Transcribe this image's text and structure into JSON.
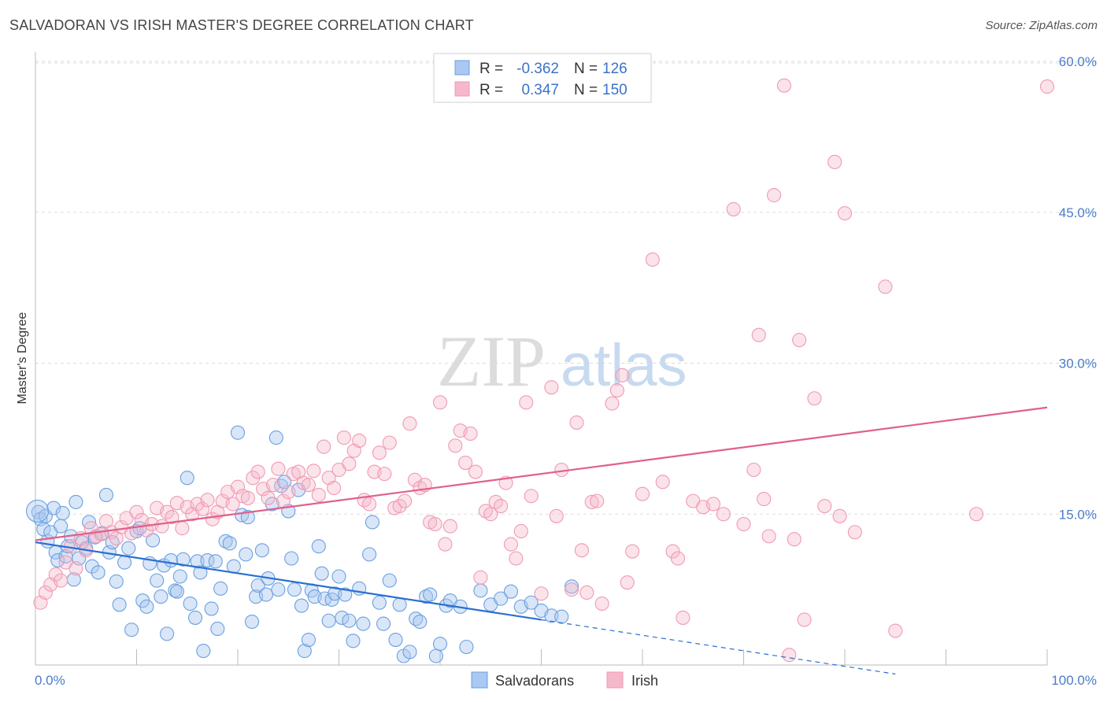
{
  "title": "SALVADORAN VS IRISH MASTER'S DEGREE CORRELATION CHART",
  "source": "Source: ZipAtlas.com",
  "watermark": {
    "zip": "ZIP",
    "atlas": "atlas"
  },
  "legend_top": [
    {
      "r_label": "R =",
      "r_value": "-0.362",
      "n_label": "N =",
      "n_value": "126",
      "color": "#aac8f0"
    },
    {
      "r_label": "R =",
      "r_value": "0.347",
      "n_label": "N =",
      "n_value": "150",
      "color": "#f5b8ca"
    }
  ],
  "legend_bottom": [
    {
      "label": "Salvadorans",
      "color": "#aac8f0"
    },
    {
      "label": "Irish",
      "color": "#f5b8ca"
    }
  ],
  "colors": {
    "blue": "#6aa0e0",
    "blue_line": "#2a6fd0",
    "pink": "#f09ab4",
    "pink_line": "#e0608a",
    "grid": "#dddddd",
    "tick_text": "#4a7cc9"
  },
  "chart_data": {
    "type": "scatter",
    "xlabel": "",
    "ylabel": "Master's Degree",
    "xlim": [
      0,
      100
    ],
    "ylim": [
      0,
      60
    ],
    "x_tick_labels": [
      "0.0%",
      "100.0%"
    ],
    "y_ticks": [
      15,
      30,
      45,
      60
    ],
    "y_tick_labels": [
      "15.0%",
      "30.0%",
      "45.0%",
      "60.0%"
    ],
    "grid": true,
    "series": [
      {
        "name": "Salvadorans",
        "trend": {
          "x": [
            0,
            50
          ],
          "y": [
            12.2,
            4.5
          ],
          "dashed_to": {
            "x": 85,
            "y": -0.9
          }
        },
        "points": [
          [
            0.3,
            15.2
          ],
          [
            0.5,
            14.5
          ],
          [
            0.8,
            13.5
          ],
          [
            1,
            14.8
          ],
          [
            1.2,
            12.3
          ],
          [
            1.5,
            13.2
          ],
          [
            1.8,
            15.6
          ],
          [
            2,
            11.2
          ],
          [
            2.2,
            10.4
          ],
          [
            2.5,
            13.8
          ],
          [
            2.7,
            15.1
          ],
          [
            3,
            10.8
          ],
          [
            3.2,
            11.8
          ],
          [
            3.5,
            12.8
          ],
          [
            3.8,
            8.5
          ],
          [
            4,
            16.2
          ],
          [
            4.3,
            10.6
          ],
          [
            4.6,
            12.2
          ],
          [
            5,
            11.6
          ],
          [
            5.3,
            14.2
          ],
          [
            5.6,
            9.8
          ],
          [
            5.9,
            12.7
          ],
          [
            6.2,
            9.2
          ],
          [
            6.6,
            13.1
          ],
          [
            7,
            16.9
          ],
          [
            7.3,
            11.2
          ],
          [
            7.6,
            12.2
          ],
          [
            8,
            8.3
          ],
          [
            8.3,
            6.0
          ],
          [
            8.8,
            10.2
          ],
          [
            9.2,
            11.6
          ],
          [
            9.5,
            3.5
          ],
          [
            10,
            13.3
          ],
          [
            10.3,
            13.6
          ],
          [
            10.6,
            6.4
          ],
          [
            11,
            5.8
          ],
          [
            11.3,
            10.1
          ],
          [
            11.6,
            12.4
          ],
          [
            12,
            8.4
          ],
          [
            12.4,
            6.8
          ],
          [
            12.7,
            9.9
          ],
          [
            13,
            3.1
          ],
          [
            13.4,
            10.4
          ],
          [
            13.8,
            7.4
          ],
          [
            14,
            7.3
          ],
          [
            14.3,
            8.8
          ],
          [
            14.6,
            10.5
          ],
          [
            15,
            18.6
          ],
          [
            15.3,
            6.1
          ],
          [
            15.8,
            4.7
          ],
          [
            16,
            10.3
          ],
          [
            16.3,
            9.2
          ],
          [
            16.6,
            1.4
          ],
          [
            17,
            10.4
          ],
          [
            17.4,
            5.6
          ],
          [
            17.8,
            10.3
          ],
          [
            18,
            3.6
          ],
          [
            18.3,
            7.6
          ],
          [
            18.8,
            12.3
          ],
          [
            19.2,
            12.1
          ],
          [
            19.6,
            9.8
          ],
          [
            20,
            23.1
          ],
          [
            20.4,
            14.9
          ],
          [
            20.8,
            11.0
          ],
          [
            21,
            14.7
          ],
          [
            21.4,
            4.3
          ],
          [
            21.8,
            6.8
          ],
          [
            22,
            7.9
          ],
          [
            22.4,
            11.4
          ],
          [
            22.8,
            7.0
          ],
          [
            23,
            8.6
          ],
          [
            23.4,
            16.0
          ],
          [
            23.8,
            22.6
          ],
          [
            24,
            7.5
          ],
          [
            24.3,
            17.8
          ],
          [
            24.6,
            18.2
          ],
          [
            25,
            15.3
          ],
          [
            25.3,
            10.6
          ],
          [
            25.6,
            7.5
          ],
          [
            26,
            17.4
          ],
          [
            26.3,
            5.9
          ],
          [
            26.6,
            1.4
          ],
          [
            27,
            2.5
          ],
          [
            27.3,
            7.4
          ],
          [
            27.6,
            6.8
          ],
          [
            28,
            11.8
          ],
          [
            28.3,
            9.1
          ],
          [
            28.6,
            6.6
          ],
          [
            29,
            4.4
          ],
          [
            29.3,
            6.5
          ],
          [
            29.6,
            7.1
          ],
          [
            30,
            8.8
          ],
          [
            30.3,
            4.7
          ],
          [
            30.6,
            7.0
          ],
          [
            31,
            4.4
          ],
          [
            31.4,
            2.4
          ],
          [
            32,
            7.6
          ],
          [
            32.4,
            4.1
          ],
          [
            33,
            11.0
          ],
          [
            33.3,
            14.2
          ],
          [
            34,
            6.2
          ],
          [
            34.4,
            4.1
          ],
          [
            35,
            8.4
          ],
          [
            35.6,
            2.5
          ],
          [
            36,
            6.0
          ],
          [
            36.4,
            0.9
          ],
          [
            37,
            1.3
          ],
          [
            37.6,
            4.6
          ],
          [
            38,
            4.3
          ],
          [
            38.6,
            6.8
          ],
          [
            39,
            7.0
          ],
          [
            39.6,
            0.9
          ],
          [
            40,
            2.1
          ],
          [
            40.6,
            5.9
          ],
          [
            41,
            6.4
          ],
          [
            42,
            5.8
          ],
          [
            42.6,
            1.8
          ],
          [
            44,
            7.4
          ],
          [
            45,
            6.0
          ],
          [
            46,
            6.6
          ],
          [
            47,
            7.3
          ],
          [
            48,
            5.8
          ],
          [
            49,
            6.2
          ],
          [
            50,
            5.4
          ],
          [
            51,
            4.9
          ],
          [
            52,
            4.8
          ],
          [
            53,
            7.8
          ]
        ]
      },
      {
        "name": "Irish",
        "trend": {
          "x": [
            0,
            100
          ],
          "y": [
            12.4,
            25.6
          ]
        },
        "points": [
          [
            0.5,
            6.2
          ],
          [
            1,
            7.2
          ],
          [
            1.5,
            8.0
          ],
          [
            2,
            9.0
          ],
          [
            2.5,
            8.4
          ],
          [
            3,
            10.2
          ],
          [
            3.5,
            11.8
          ],
          [
            4,
            9.6
          ],
          [
            4.5,
            12.6
          ],
          [
            5,
            11.4
          ],
          [
            5.5,
            13.6
          ],
          [
            6,
            12.8
          ],
          [
            6.5,
            13.0
          ],
          [
            7,
            14.3
          ],
          [
            7.5,
            13.2
          ],
          [
            8,
            12.6
          ],
          [
            8.5,
            13.7
          ],
          [
            9,
            14.6
          ],
          [
            9.5,
            13.1
          ],
          [
            10,
            15.2
          ],
          [
            10.5,
            14.4
          ],
          [
            11,
            13.4
          ],
          [
            11.5,
            14.0
          ],
          [
            12,
            15.6
          ],
          [
            12.5,
            13.8
          ],
          [
            13,
            15.2
          ],
          [
            13.5,
            14.7
          ],
          [
            14,
            16.1
          ],
          [
            14.5,
            13.6
          ],
          [
            15,
            15.7
          ],
          [
            15.5,
            15.0
          ],
          [
            16,
            16.0
          ],
          [
            16.5,
            15.5
          ],
          [
            17,
            16.4
          ],
          [
            17.5,
            14.5
          ],
          [
            18,
            15.2
          ],
          [
            18.5,
            16.3
          ],
          [
            19,
            17.2
          ],
          [
            19.5,
            16.0
          ],
          [
            20,
            17.7
          ],
          [
            20.5,
            16.8
          ],
          [
            21,
            16.6
          ],
          [
            21.5,
            18.6
          ],
          [
            22,
            19.2
          ],
          [
            22.5,
            17.5
          ],
          [
            23,
            16.6
          ],
          [
            23.5,
            17.9
          ],
          [
            24,
            19.5
          ],
          [
            24.5,
            16.3
          ],
          [
            25,
            17.2
          ],
          [
            25.5,
            19.0
          ],
          [
            26,
            19.2
          ],
          [
            26.5,
            18.1
          ],
          [
            27,
            17.9
          ],
          [
            27.5,
            19.3
          ],
          [
            28,
            16.9
          ],
          [
            28.5,
            21.7
          ],
          [
            29,
            18.6
          ],
          [
            29.5,
            17.6
          ],
          [
            30,
            19.4
          ],
          [
            30.5,
            22.6
          ],
          [
            31,
            20.0
          ],
          [
            31.5,
            21.3
          ],
          [
            32,
            22.3
          ],
          [
            32.5,
            16.4
          ],
          [
            33,
            16.0
          ],
          [
            33.5,
            19.2
          ],
          [
            34,
            21.1
          ],
          [
            34.5,
            19.0
          ],
          [
            35,
            22.1
          ],
          [
            35.5,
            15.6
          ],
          [
            36,
            15.8
          ],
          [
            36.5,
            16.3
          ],
          [
            37,
            24.0
          ],
          [
            37.5,
            18.4
          ],
          [
            38,
            17.6
          ],
          [
            38.5,
            17.9
          ],
          [
            39,
            14.2
          ],
          [
            39.5,
            14.0
          ],
          [
            40,
            26.1
          ],
          [
            40.5,
            12.0
          ],
          [
            41,
            13.8
          ],
          [
            41.5,
            21.8
          ],
          [
            42,
            23.3
          ],
          [
            42.5,
            20.1
          ],
          [
            43,
            23.0
          ],
          [
            43.5,
            19.2
          ],
          [
            44,
            8.7
          ],
          [
            44.5,
            15.3
          ],
          [
            45,
            15.0
          ],
          [
            45.5,
            16.2
          ],
          [
            46,
            15.8
          ],
          [
            46.5,
            18.1
          ],
          [
            47,
            12.0
          ],
          [
            47.5,
            10.6
          ],
          [
            48,
            13.3
          ],
          [
            48.5,
            26.1
          ],
          [
            49,
            16.8
          ],
          [
            50,
            7.1
          ],
          [
            51,
            27.6
          ],
          [
            51.5,
            14.8
          ],
          [
            52,
            19.4
          ],
          [
            53,
            7.5
          ],
          [
            53.5,
            24.1
          ],
          [
            54,
            11.4
          ],
          [
            54.5,
            7.2
          ],
          [
            55,
            16.2
          ],
          [
            55.5,
            16.3
          ],
          [
            56,
            6.1
          ],
          [
            57,
            26.0
          ],
          [
            57.5,
            27.3
          ],
          [
            58,
            28.8
          ],
          [
            58.5,
            8.2
          ],
          [
            59,
            11.3
          ],
          [
            60,
            17.0
          ],
          [
            61,
            40.3
          ],
          [
            62,
            18.2
          ],
          [
            63,
            11.3
          ],
          [
            63.5,
            10.6
          ],
          [
            64,
            4.7
          ],
          [
            65,
            16.3
          ],
          [
            66,
            15.7
          ],
          [
            67,
            16.0
          ],
          [
            68,
            15.0
          ],
          [
            69,
            45.3
          ],
          [
            70,
            14.0
          ],
          [
            71,
            19.4
          ],
          [
            71.5,
            32.8
          ],
          [
            72,
            16.5
          ],
          [
            72.5,
            12.8
          ],
          [
            73,
            46.7
          ],
          [
            74,
            57.6
          ],
          [
            74.5,
            1.0
          ],
          [
            75,
            12.5
          ],
          [
            75.5,
            32.3
          ],
          [
            76,
            4.5
          ],
          [
            77,
            26.5
          ],
          [
            78,
            15.8
          ],
          [
            79,
            50.0
          ],
          [
            79.5,
            14.8
          ],
          [
            80,
            44.9
          ],
          [
            81,
            13.2
          ],
          [
            84,
            37.6
          ],
          [
            85,
            3.4
          ],
          [
            93,
            15.0
          ],
          [
            100,
            57.5
          ]
        ]
      }
    ]
  }
}
